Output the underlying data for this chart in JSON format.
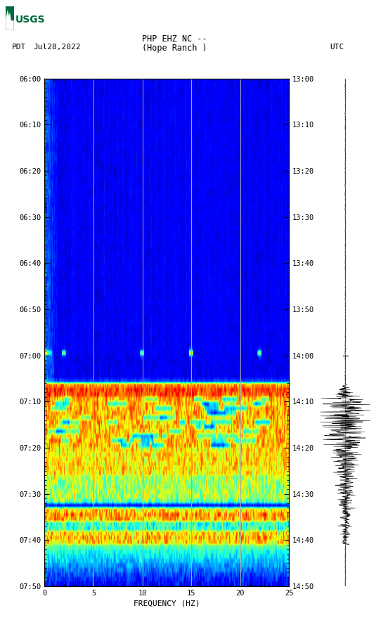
{
  "title_line1": "PHP EHZ NC --",
  "title_line2": "(Hope Ranch )",
  "left_label": "PDT",
  "date_label": "Jul28,2022",
  "right_label": "UTC",
  "xlabel": "FREQUENCY (HZ)",
  "freq_min": 0,
  "freq_max": 25,
  "freq_ticks": [
    0,
    5,
    10,
    15,
    20,
    25
  ],
  "pdt_ticks": [
    "06:00",
    "06:10",
    "06:20",
    "06:30",
    "06:40",
    "06:50",
    "07:00",
    "07:10",
    "07:20",
    "07:30",
    "07:40",
    "07:50"
  ],
  "utc_ticks": [
    "13:00",
    "13:10",
    "13:20",
    "13:30",
    "13:40",
    "13:50",
    "14:00",
    "14:10",
    "14:20",
    "14:30",
    "14:40",
    "14:50"
  ],
  "n_time": 110,
  "n_freq": 250,
  "background_color": "white",
  "vert_line_freqs": [
    5,
    10,
    15,
    20
  ],
  "vert_line_color": "#aaaaaa",
  "usgs_color": "#006B3C",
  "cmap": "jet",
  "fig_width": 5.52,
  "fig_height": 8.92
}
